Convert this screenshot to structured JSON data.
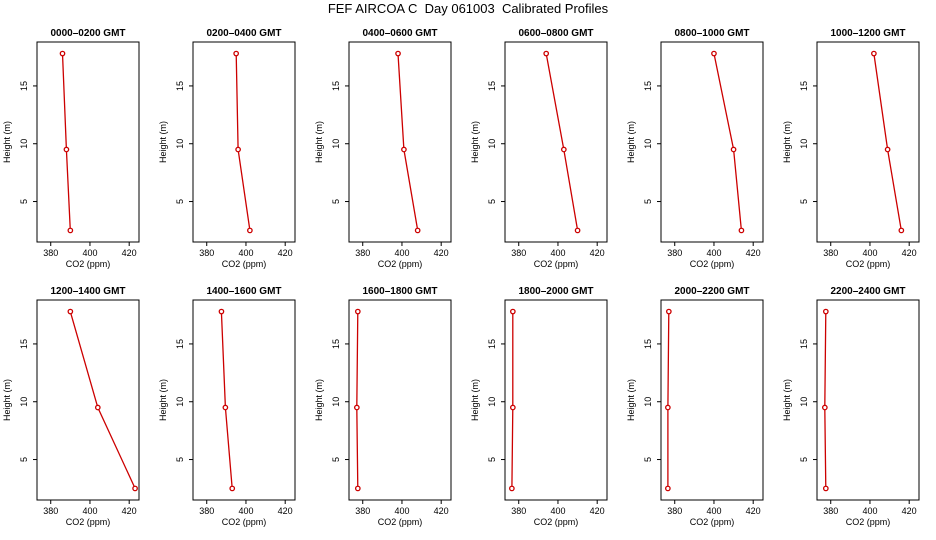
{
  "figure": {
    "title": "FEF AIRCOA C  Day 061003  Calibrated Profiles"
  },
  "style": {
    "line_color": "#cc0000",
    "marker_color": "#cc0000",
    "axis_color": "#000000"
  },
  "chart_data": [
    {
      "type": "line",
      "title": "0000–0200 GMT",
      "xlabel": "CO2 (ppm)",
      "ylabel": "Height (m)",
      "xlim": [
        373,
        425
      ],
      "ylim": [
        1.5,
        18.8
      ],
      "xticks": [
        380,
        400,
        420
      ],
      "yticks": [
        5,
        10,
        15
      ],
      "x": [
        386,
        388,
        390
      ],
      "y": [
        17.8,
        9.5,
        2.5
      ]
    },
    {
      "type": "line",
      "title": "0200–0400 GMT",
      "xlabel": "CO2 (ppm)",
      "ylabel": "Height (m)",
      "xlim": [
        373,
        425
      ],
      "ylim": [
        1.5,
        18.8
      ],
      "xticks": [
        380,
        400,
        420
      ],
      "yticks": [
        5,
        10,
        15
      ],
      "x": [
        395,
        396,
        402
      ],
      "y": [
        17.8,
        9.5,
        2.5
      ]
    },
    {
      "type": "line",
      "title": "0400–0600 GMT",
      "xlabel": "CO2 (ppm)",
      "ylabel": "Height (m)",
      "xlim": [
        373,
        425
      ],
      "ylim": [
        1.5,
        18.8
      ],
      "xticks": [
        380,
        400,
        420
      ],
      "yticks": [
        5,
        10,
        15
      ],
      "x": [
        398,
        401,
        408
      ],
      "y": [
        17.8,
        9.5,
        2.5
      ]
    },
    {
      "type": "line",
      "title": "0600–0800 GMT",
      "xlabel": "CO2 (ppm)",
      "ylabel": "Height (m)",
      "xlim": [
        373,
        425
      ],
      "ylim": [
        1.5,
        18.8
      ],
      "xticks": [
        380,
        400,
        420
      ],
      "yticks": [
        5,
        10,
        15
      ],
      "x": [
        394,
        403,
        410
      ],
      "y": [
        17.8,
        9.5,
        2.5
      ]
    },
    {
      "type": "line",
      "title": "0800–1000 GMT",
      "xlabel": "CO2 (ppm)",
      "ylabel": "Height (m)",
      "xlim": [
        373,
        425
      ],
      "ylim": [
        1.5,
        18.8
      ],
      "xticks": [
        380,
        400,
        420
      ],
      "yticks": [
        5,
        10,
        15
      ],
      "x": [
        400,
        410,
        414
      ],
      "y": [
        17.8,
        9.5,
        2.5
      ]
    },
    {
      "type": "line",
      "title": "1000–1200 GMT",
      "xlabel": "CO2 (ppm)",
      "ylabel": "Height (m)",
      "xlim": [
        373,
        425
      ],
      "ylim": [
        1.5,
        18.8
      ],
      "xticks": [
        380,
        400,
        420
      ],
      "yticks": [
        5,
        10,
        15
      ],
      "x": [
        402,
        409,
        416
      ],
      "y": [
        17.8,
        9.5,
        2.5
      ]
    },
    {
      "type": "line",
      "title": "1200–1400 GMT",
      "xlabel": "CO2 (ppm)",
      "ylabel": "Height (m)",
      "xlim": [
        373,
        425
      ],
      "ylim": [
        1.5,
        18.8
      ],
      "xticks": [
        380,
        400,
        420
      ],
      "yticks": [
        5,
        10,
        15
      ],
      "x": [
        390,
        404,
        423
      ],
      "y": [
        17.8,
        9.5,
        2.5
      ]
    },
    {
      "type": "line",
      "title": "1400–1600 GMT",
      "xlabel": "CO2 (ppm)",
      "ylabel": "Height (m)",
      "xlim": [
        373,
        425
      ],
      "ylim": [
        1.5,
        18.8
      ],
      "xticks": [
        380,
        400,
        420
      ],
      "yticks": [
        5,
        10,
        15
      ],
      "x": [
        387.5,
        389.5,
        393
      ],
      "y": [
        17.8,
        9.5,
        2.5
      ]
    },
    {
      "type": "line",
      "title": "1600–1800 GMT",
      "xlabel": "CO2 (ppm)",
      "ylabel": "Height (m)",
      "xlim": [
        373,
        425
      ],
      "ylim": [
        1.5,
        18.8
      ],
      "xticks": [
        380,
        400,
        420
      ],
      "yticks": [
        5,
        10,
        15
      ],
      "x": [
        377.5,
        377,
        377.5
      ],
      "y": [
        17.8,
        9.5,
        2.5
      ]
    },
    {
      "type": "line",
      "title": "1800–2000 GMT",
      "xlabel": "CO2 (ppm)",
      "ylabel": "Height (m)",
      "xlim": [
        373,
        425
      ],
      "ylim": [
        1.5,
        18.8
      ],
      "xticks": [
        380,
        400,
        420
      ],
      "yticks": [
        5,
        10,
        15
      ],
      "x": [
        377,
        377,
        376.5
      ],
      "y": [
        17.8,
        9.5,
        2.5
      ]
    },
    {
      "type": "line",
      "title": "2000–2200 GMT",
      "xlabel": "CO2 (ppm)",
      "ylabel": "Height (m)",
      "xlim": [
        373,
        425
      ],
      "ylim": [
        1.5,
        18.8
      ],
      "xticks": [
        380,
        400,
        420
      ],
      "yticks": [
        5,
        10,
        15
      ],
      "x": [
        377,
        376.5,
        376.5
      ],
      "y": [
        17.8,
        9.5,
        2.5
      ]
    },
    {
      "type": "line",
      "title": "2200–2400 GMT",
      "xlabel": "CO2 (ppm)",
      "ylabel": "Height (m)",
      "xlim": [
        373,
        425
      ],
      "ylim": [
        1.5,
        18.8
      ],
      "xticks": [
        380,
        400,
        420
      ],
      "yticks": [
        5,
        10,
        15
      ],
      "x": [
        377.5,
        377,
        377.5
      ],
      "y": [
        17.8,
        9.5,
        2.5
      ]
    }
  ]
}
